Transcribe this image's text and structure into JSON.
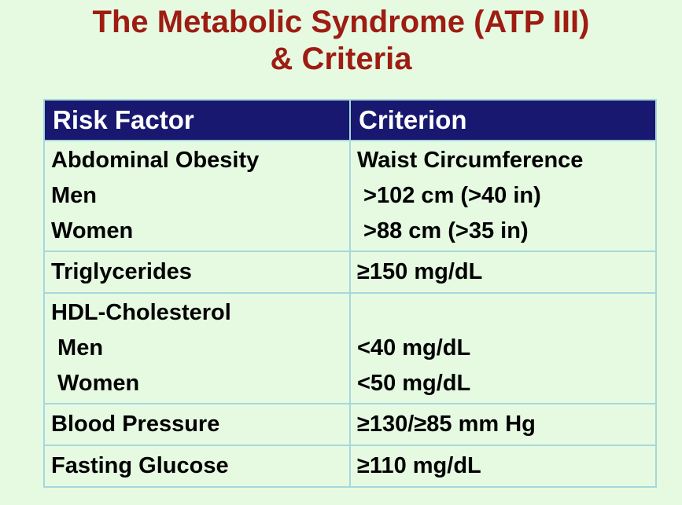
{
  "title": {
    "line1": "The Metabolic Syndrome (ATP III)",
    "line2": "& Criteria"
  },
  "colors": {
    "page_background": "#e6fae2",
    "title_text": "#9e1c12",
    "header_background": "#181870",
    "header_text": "#ffffff",
    "body_text": "#000000",
    "table_border": "#a5d8dc"
  },
  "table": {
    "header": {
      "risk_factor": "Risk Factor",
      "criterion": "Criterion"
    },
    "rows": [
      {
        "factor_lines": [
          "Abdominal Obesity",
          "Men",
          "Women"
        ],
        "criterion_lines": [
          "Waist Circumference",
          " >102 cm (>40 in)",
          " >88 cm (>35 in)"
        ]
      },
      {
        "factor_lines": [
          "Triglycerides"
        ],
        "criterion_lines": [
          "≥150 mg/dL"
        ]
      },
      {
        "factor_lines": [
          "HDL-Cholesterol",
          " Men",
          " Women"
        ],
        "criterion_lines": [
          "",
          "<40 mg/dL",
          "<50 mg/dL"
        ]
      },
      {
        "factor_lines": [
          "Blood Pressure"
        ],
        "criterion_lines": [
          "≥130/≥85 mm Hg"
        ]
      },
      {
        "factor_lines": [
          "Fasting Glucose"
        ],
        "criterion_lines": [
          "≥110 mg/dL"
        ]
      }
    ]
  }
}
